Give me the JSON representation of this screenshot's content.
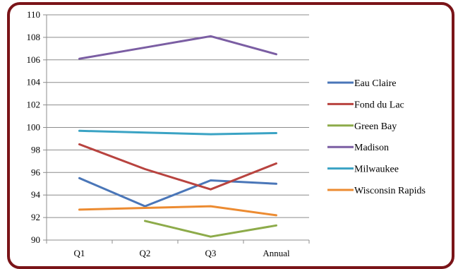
{
  "chart_data": {
    "type": "line",
    "categories": [
      "Q1",
      "Q2",
      "Q3",
      "Annual"
    ],
    "ylim": [
      90,
      110
    ],
    "yticks": [
      "90",
      "92",
      "94",
      "96",
      "98",
      "100",
      "102",
      "104",
      "106",
      "108",
      "110"
    ],
    "grid": "horizontal",
    "legend_position": "right",
    "series": [
      {
        "name": "Eau Claire",
        "color": "#4a76b8",
        "values": [
          95.5,
          93.0,
          95.3,
          95.0
        ]
      },
      {
        "name": "Fond du Lac",
        "color": "#b8433f",
        "values": [
          98.5,
          96.3,
          94.5,
          96.8
        ]
      },
      {
        "name": "Green Bay",
        "color": "#8dab4a",
        "values": [
          null,
          91.7,
          90.3,
          91.3
        ]
      },
      {
        "name": "Madison",
        "color": "#7b5ea3",
        "values": [
          106.1,
          107.1,
          108.1,
          106.5
        ]
      },
      {
        "name": "Milwaukee",
        "color": "#3aa3c4",
        "values": [
          99.7,
          99.55,
          99.4,
          99.5
        ]
      },
      {
        "name": "Wisconsin Rapids",
        "color": "#ec8b31",
        "values": [
          92.7,
          92.85,
          93.0,
          92.2
        ]
      }
    ]
  }
}
